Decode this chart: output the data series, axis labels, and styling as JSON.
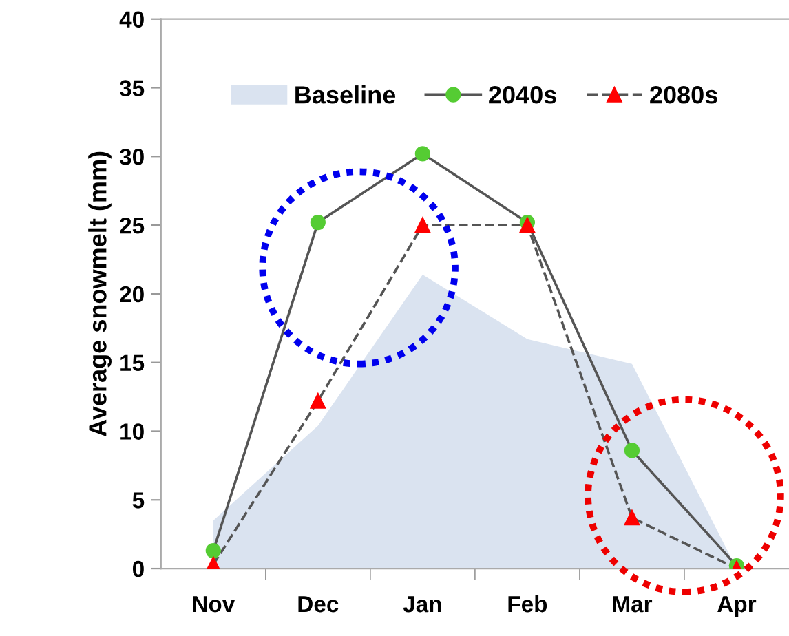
{
  "chart_data": {
    "type": "line",
    "ylabel": "Average snowmelt (mm)",
    "categories": [
      "Nov",
      "Dec",
      "Jan",
      "Feb",
      "Mar",
      "Apr"
    ],
    "series": [
      {
        "name": "Baseline",
        "type": "area",
        "color": "#dae3f0",
        "values": [
          3.5,
          10.4,
          21.4,
          16.7,
          14.9,
          0
        ]
      },
      {
        "name": "2040s",
        "color": "#55cc33",
        "marker": "circle",
        "line_style": "solid",
        "values": [
          1.3,
          25.2,
          30.2,
          25.2,
          8.6,
          0.2
        ]
      },
      {
        "name": "2080s",
        "color": "#ff0000",
        "marker": "triangle",
        "line_style": "dashed",
        "values": [
          0.3,
          12.2,
          25.0,
          25.0,
          3.7,
          0
        ]
      }
    ],
    "ylim": [
      0,
      40
    ],
    "yticks": [
      0,
      5,
      10,
      15,
      20,
      25,
      30,
      35,
      40
    ],
    "grid": false,
    "legend": "top"
  }
}
